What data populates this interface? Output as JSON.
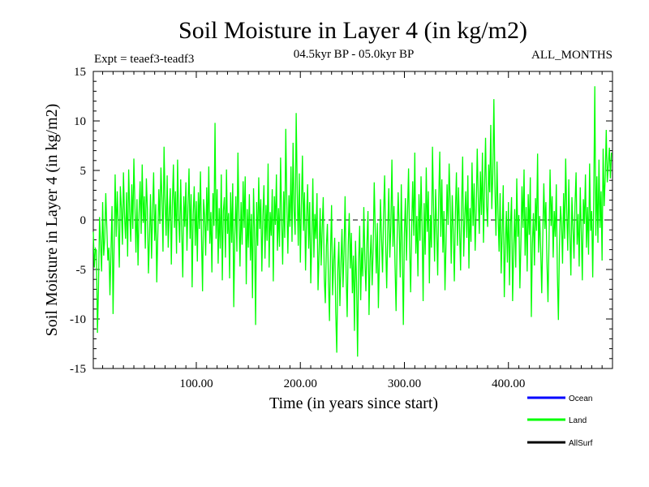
{
  "chart_data": {
    "type": "line",
    "title": "Soil Moisture in Layer 4 (in kg/m2)",
    "subtitle_left": "Expt = teaef3-teadf3",
    "subtitle_center": "04.5kyr BP - 05.0kyr BP",
    "subtitle_right": "ALL_MONTHS",
    "xlabel": "Time (in years since start)",
    "ylabel": "Soil Moisture in Layer 4 (in kg/m2)",
    "xlim": [
      1,
      500
    ],
    "ylim": [
      -15,
      15
    ],
    "x_tick_labels": [
      "100.00",
      "200.00",
      "300.00",
      "400.00"
    ],
    "x_tick_values": [
      100,
      200,
      300,
      400
    ],
    "y_tick_labels": [
      "15",
      "10",
      "5",
      "0",
      "-5",
      "-10",
      "-15"
    ],
    "y_tick_values": [
      15,
      10,
      5,
      0,
      -5,
      -10,
      -15
    ],
    "zero_line": true,
    "legend": [
      {
        "name": "Ocean",
        "color": "#0000ff"
      },
      {
        "name": "Land",
        "color": "#00ff00"
      },
      {
        "name": "AllSurf",
        "color": "#000000"
      }
    ],
    "series": [
      {
        "name": "Land",
        "color": "#00ff00",
        "x_start": 1,
        "x_step": 1,
        "values": [
          -1.2,
          -4.8,
          -2.9,
          -3.1,
          -11.4,
          -6.8,
          0.3,
          -2.4,
          -5.2,
          1.8,
          -3.6,
          -1.9,
          2.7,
          -0.8,
          -4.1,
          -2.8,
          -7.6,
          -3.2,
          1.4,
          -9.5,
          -2.6,
          4.6,
          -1.7,
          2.9,
          -0.6,
          -4.8,
          3.4,
          1.2,
          -2.5,
          4.8,
          0.4,
          -1.9,
          2.8,
          -3.7,
          5.1,
          0.8,
          -2.2,
          3.6,
          -0.9,
          6.2,
          1.5,
          -3.3,
          2.1,
          -4.6,
          0.7,
          3.9,
          -1.4,
          5.6,
          -0.3,
          2.4,
          -2.9,
          4.2,
          1.1,
          -5.4,
          -1.8,
          2.6,
          -3.9,
          0.9,
          4.8,
          -2.1,
          1.6,
          -6.3,
          -1.5,
          3.1,
          -0.4,
          5.3,
          2.2,
          -3.2,
          7.4,
          1.8,
          -1.6,
          4.5,
          -2.8,
          0.6,
          3.2,
          -4.5,
          1.7,
          5.6,
          -0.8,
          2.9,
          -3.4,
          6.1,
          0.3,
          -2.3,
          4.1,
          -1.2,
          -5.8,
          2.4,
          -0.7,
          3.8,
          -3.1,
          1.3,
          5.2,
          -1.9,
          2.6,
          -6.8,
          0.5,
          3.4,
          -2.6,
          1.9,
          -4.2,
          2.8,
          -0.9,
          4.9,
          -1.7,
          -7.2,
          2.1,
          0.4,
          -3.6,
          3.3,
          -1.1,
          5.4,
          -2.4,
          0.8,
          -5.3,
          2.7,
          -0.6,
          9.8,
          -1.9,
          3.1,
          -4.4,
          1.2,
          -2.9,
          4.6,
          -6.1,
          0.9,
          2.3,
          -3.8,
          5.1,
          -1.4,
          0.7,
          -5.9,
          2.8,
          -2.3,
          3.7,
          -8.8,
          -1.6,
          2.4,
          -3.2,
          6.8,
          0.3,
          -4.7,
          1.8,
          -2.5,
          3.9,
          -0.8,
          4.4,
          -6.5,
          1.1,
          -2.8,
          2.6,
          -4.1,
          0.6,
          -7.9,
          3.2,
          -1.3,
          -10.6,
          1.8,
          -2.6,
          4.3,
          -0.9,
          2.1,
          -5.2,
          0.4,
          3.5,
          -3.9,
          1.5,
          -2.1,
          5.7,
          -4.8,
          0.8,
          -1.6,
          3.1,
          -6.2,
          2.4,
          -0.5,
          4.6,
          -3.1,
          1.2,
          -2.7,
          6.3,
          0.2,
          -4.5,
          2.9,
          -1.8,
          9.2,
          1.6,
          -3.4,
          2.5,
          -0.7,
          5.4,
          -2.2,
          7.8,
          0.9,
          -1.5,
          10.8,
          3.1,
          -2.6,
          4.7,
          -4.3,
          1.4,
          6.5,
          -1.1,
          2.8,
          -5.1,
          0.3,
          3.6,
          -2.9,
          1.8,
          -6.4,
          -2.1,
          4.2,
          -3.8,
          0.6,
          -1.9,
          2.7,
          -7.1,
          -3.5,
          1.2,
          -4.6,
          -0.8,
          2.3,
          -5.9,
          -8.4,
          -2.7,
          -0.4,
          -6.1,
          -10.2,
          -3.3,
          1.5,
          -7.6,
          -4.2,
          -1.8,
          -9.3,
          -13.4,
          -5.1,
          -2.2,
          -8.7,
          -4.5,
          -0.9,
          -6.8,
          -3.1,
          2.4,
          -5.5,
          -9.8,
          -2.6,
          0.7,
          -4.9,
          -1.3,
          -7.4,
          -3.6,
          -11.2,
          -2.1,
          -6.3,
          -13.8,
          -4.4,
          -0.6,
          -8.1,
          -2.8,
          -5.7,
          1.3,
          -3.9,
          -7.2,
          -2.4,
          0.9,
          -9.6,
          -4.1,
          -1.5,
          -6.6,
          -2.9,
          3.8,
          -1.2,
          -5.4,
          -0.3,
          -8.9,
          -3.7,
          2.1,
          -1.8,
          -5.3,
          0.6,
          4.5,
          -2.4,
          -6.9,
          -1.1,
          3.2,
          -3.8,
          -0.5,
          6.1,
          -2.7,
          1.4,
          -4.6,
          -9.2,
          -1.9,
          2.8,
          -0.7,
          -5.8,
          3.6,
          -3.3,
          -10.6,
          -1.4,
          2.2,
          -4.1,
          0.8,
          5.2,
          -2.5,
          -7.3,
          -0.9,
          3.9,
          -1.6,
          6.8,
          -3.4,
          0.4,
          -5.7,
          2.6,
          -2.1,
          4.4,
          -0.6,
          -8.2,
          1.7,
          -3.5,
          5.3,
          -1.2,
          2.9,
          -6.4,
          0.5,
          -2.8,
          7.4,
          1.3,
          -4.2,
          3.1,
          -0.8,
          -5.6,
          2.2,
          6.9,
          -1.7,
          4.1,
          -3.3,
          0.9,
          -7.1,
          -2.4,
          3.6,
          -0.5,
          5.7,
          1.8,
          -4.4,
          2.5,
          -1.3,
          -6.2,
          0.7,
          4.8,
          -2.6,
          3.3,
          -0.9,
          -5.1,
          1.6,
          6.4,
          -3.7,
          0.3,
          2.9,
          -1.8,
          4.5,
          -4.9,
          1.2,
          -2.2,
          5.8,
          -0.6,
          3.7,
          -3.1,
          0.8,
          7.2,
          2.3,
          -1.4,
          4.9,
          0.5,
          6.8,
          -2.3,
          3.1,
          8.3,
          1.4,
          -0.7,
          5.6,
          2.8,
          9.6,
          1.1,
          4.7,
          12.2,
          3.4,
          -1.6,
          5.9,
          0.6,
          -3.2,
          2.7,
          -5.4,
          -1.2,
          3.5,
          -7.8,
          -2.6,
          0.9,
          -4.3,
          1.8,
          -6.6,
          -0.4,
          2.3,
          -8.2,
          -3.1,
          1.1,
          -4.8,
          4.2,
          -1.7,
          0.5,
          -6.9,
          -2.2,
          3.4,
          -0.8,
          5.1,
          -3.6,
          1.3,
          -5.2,
          2.6,
          -1.5,
          4.3,
          -9.8,
          -2.4,
          0.7,
          -4.6,
          2.2,
          -1.1,
          6.7,
          -3.3,
          0.4,
          -2.9,
          -7.4,
          -1.6,
          3.7,
          -0.9,
          1.8,
          -4.2,
          -8.3,
          -2.1,
          5.1,
          -0.6,
          2.4,
          -3.8,
          0.9,
          -1.7,
          3.6,
          -5.3,
          -10.1,
          -2.7,
          1.4,
          -0.3,
          -4.4,
          2.7,
          -1.9,
          6.2,
          0.8,
          -3.1,
          4.1,
          -1.4,
          -5.6,
          2.3,
          -0.7,
          -3.9,
          1.6,
          4.8,
          -2.5,
          0.6,
          -4.7,
          3.3,
          -1.2,
          -6.1,
          2.1,
          -0.4,
          4.6,
          -2.8,
          1.3,
          -3.5,
          5.7,
          -1.1,
          0.9,
          -5.8,
          2.4,
          13.5,
          -1.6,
          4.4,
          -2.3,
          6.1,
          -0.8,
          2.9,
          -4.1,
          7.2,
          1.4,
          4.3,
          9.1,
          3.8,
          5.6,
          7.3,
          4.2,
          6.8
        ]
      }
    ]
  }
}
